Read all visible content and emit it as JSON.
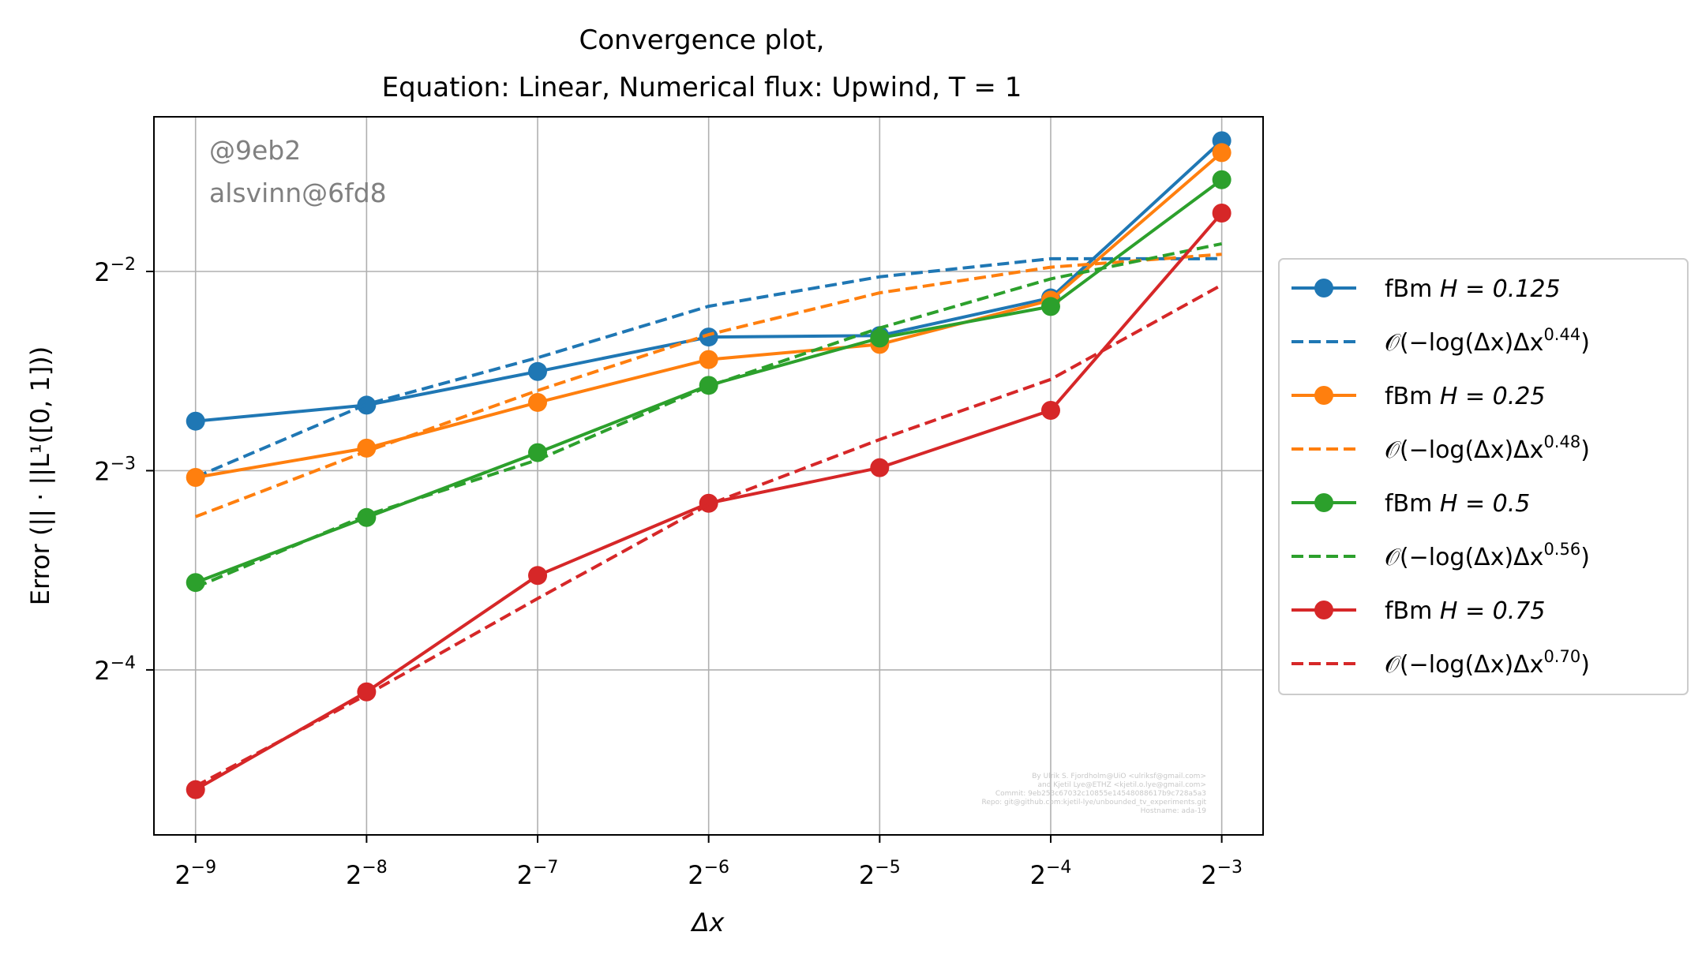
{
  "chart_data": {
    "type": "line",
    "title_lines": [
      "Convergence plot,",
      "Equation: Linear, Numerical flux: Upwind, T = 1"
    ],
    "xlabel": "Δx",
    "ylabel": "Error (|| · ||L¹([0, 1]))",
    "xscale": "log2",
    "yscale": "log2",
    "x": [
      0.001953125,
      0.00390625,
      0.0078125,
      0.015625,
      0.03125,
      0.0625,
      0.125
    ],
    "xticks": [
      {
        "base": "2",
        "exp": "−9"
      },
      {
        "base": "2",
        "exp": "−8"
      },
      {
        "base": "2",
        "exp": "−7"
      },
      {
        "base": "2",
        "exp": "−6"
      },
      {
        "base": "2",
        "exp": "−5"
      },
      {
        "base": "2",
        "exp": "−4"
      },
      {
        "base": "2",
        "exp": "−3"
      }
    ],
    "yticks": [
      {
        "value": 0.25,
        "base": "2",
        "exp": "−2"
      },
      {
        "value": 0.125,
        "base": "2",
        "exp": "−3"
      },
      {
        "value": 0.0625,
        "base": "2",
        "exp": "−4"
      }
    ],
    "xlim": [
      0.00165,
      0.1478
    ],
    "ylim": [
      0.0352,
      0.4282
    ],
    "grid": true,
    "legend_position": "outside-right",
    "series": [
      {
        "name": "fBm H = 0.125",
        "kind": "data",
        "color": "#1f77b4",
        "values": [
          0.1485,
          0.157,
          0.1765,
          0.199,
          0.2,
          0.228,
          0.394
        ]
      },
      {
        "name": "𝒪(−log(Δx)Δx^0.44)",
        "kind": "fit",
        "color": "#1f77b4",
        "values": [
          0.1222,
          0.1575,
          0.1852,
          0.2215,
          0.2454,
          0.2613,
          0.2614
        ]
      },
      {
        "name": "fBm H = 0.25",
        "kind": "data",
        "color": "#ff7f0e",
        "values": [
          0.1221,
          0.1352,
          0.1585,
          0.184,
          0.194,
          0.2262,
          0.378
        ]
      },
      {
        "name": "𝒪(−log(Δx)Δx^0.48)",
        "kind": "fit",
        "color": "#ff7f0e",
        "values": [
          0.1065,
          0.1337,
          0.1652,
          0.2007,
          0.2321,
          0.2537,
          0.2654
        ]
      },
      {
        "name": "fBm H = 0.5",
        "kind": "data",
        "color": "#2ca02c",
        "values": [
          0.0847,
          0.1062,
          0.1331,
          0.1682,
          0.1983,
          0.2213,
          0.344
        ]
      },
      {
        "name": "𝒪(−log(Δx)Δx^0.56)",
        "kind": "fit",
        "color": "#2ca02c",
        "values": [
          0.0833,
          0.1071,
          0.1298,
          0.1677,
          0.2053,
          0.2436,
          0.2753
        ]
      },
      {
        "name": "fBm H = 0.75",
        "kind": "data",
        "color": "#d62728",
        "values": [
          0.0412,
          0.0579,
          0.0868,
          0.1116,
          0.1263,
          0.1542,
          0.3063
        ]
      },
      {
        "name": "𝒪(−log(Δx)Δx^0.70)",
        "kind": "fit",
        "color": "#d62728",
        "values": [
          0.0417,
          0.0573,
          0.0801,
          0.1111,
          0.1393,
          0.1717,
          0.2385
        ]
      }
    ],
    "legend": [
      {
        "prefix": "fBm ",
        "math": "H = 0.125"
      },
      {
        "prefix": "𝒪(−log(Δx)Δx",
        "sup": "0.44",
        "suffix": ")"
      },
      {
        "prefix": "fBm ",
        "math": "H = 0.25"
      },
      {
        "prefix": "𝒪(−log(Δx)Δx",
        "sup": "0.48",
        "suffix": ")"
      },
      {
        "prefix": "fBm ",
        "math": "H = 0.5"
      },
      {
        "prefix": "𝒪(−log(Δx)Δx",
        "sup": "0.56",
        "suffix": ")"
      },
      {
        "prefix": "fBm ",
        "math": "H = 0.75"
      },
      {
        "prefix": "𝒪(−log(Δx)Δx",
        "sup": "0.70",
        "suffix": ")"
      }
    ],
    "annotations": {
      "watermark": [
        "@9eb2",
        "alsvinn@6fd8"
      ],
      "footer": [
        "By Ulrik S. Fjordholm@UiO <ulriksf@gmail.com>",
        "and Kjetil Lye@ETHZ <kjetil.o.lye@gmail.com>",
        "Commit: 9eb253c67032c10855e14548088617b9c728a5a3",
        "Repo: git@github.com:kjetil-lye/unbounded_tv_experiments.git",
        "Hostname: ada-19"
      ]
    }
  }
}
